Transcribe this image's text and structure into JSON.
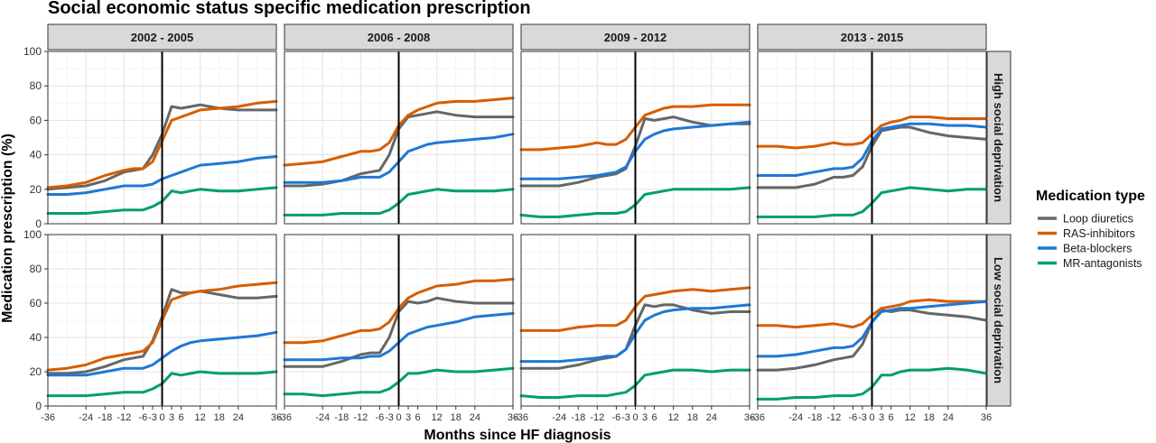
{
  "chart_data": {
    "type": "line",
    "title": "Social economic status specific medication prescription",
    "xlabel": "Months since HF diagnosis",
    "ylabel": "Medication prescription (%)",
    "ylim": [
      0,
      100
    ],
    "yticks": [
      "0",
      "20",
      "40",
      "60",
      "80",
      "100"
    ],
    "xlim": [
      -36,
      36
    ],
    "xticks": [
      -36,
      -24,
      -18,
      -12,
      -6,
      -3,
      0,
      3,
      6,
      12,
      18,
      24,
      36
    ],
    "xtick_labels": [
      "-36",
      "-24",
      "-18",
      "-12",
      "-6",
      "-3",
      "0",
      "3",
      "6",
      "12",
      "18",
      "24",
      "36"
    ],
    "diagnosis_line_x": 0,
    "grid": true,
    "legend": {
      "title": "Medication type",
      "placement": "right",
      "entries": [
        "Loop diuretics",
        "RAS-inhibitors",
        "Beta-blockers",
        "MR-antagonists"
      ]
    },
    "colors": {
      "Loop diuretics": "#666666",
      "RAS-inhibitors": "#d55e00",
      "Beta-blockers": "#1f78d4",
      "MR-antagonists": "#009e73"
    },
    "col_labels": [
      "2002 - 2005",
      "2006 - 2008",
      "2009 - 2012",
      "2013 - 2015"
    ],
    "row_labels": [
      "High social deprivation",
      "Low social deprivation"
    ],
    "x": [
      -36,
      -30,
      -24,
      -18,
      -12,
      -9,
      -6,
      -3,
      0,
      3,
      6,
      9,
      12,
      18,
      24,
      30,
      36
    ],
    "panels": [
      {
        "row": "High social deprivation",
        "col": "2002 - 2005",
        "series": [
          {
            "name": "Loop diuretics",
            "values": [
              20,
              21,
              22,
              25,
              30,
              31,
              32,
              40,
              52,
              68,
              67,
              68,
              69,
              67,
              66,
              66,
              66
            ]
          },
          {
            "name": "RAS-inhibitors",
            "values": [
              21,
              22,
              24,
              28,
              31,
              32,
              32,
              36,
              48,
              60,
              62,
              64,
              66,
              67,
              68,
              70,
              71
            ]
          },
          {
            "name": "Beta-blockers",
            "values": [
              17,
              17,
              18,
              20,
              22,
              22,
              22,
              23,
              26,
              28,
              30,
              32,
              34,
              35,
              36,
              38,
              39
            ]
          },
          {
            "name": "MR-antagonists",
            "values": [
              6,
              6,
              6,
              7,
              8,
              8,
              8,
              10,
              13,
              19,
              18,
              19,
              20,
              19,
              19,
              20,
              21
            ]
          }
        ]
      },
      {
        "row": "High social deprivation",
        "col": "2006 - 2008",
        "series": [
          {
            "name": "Loop diuretics",
            "values": [
              22,
              22,
              23,
              25,
              29,
              30,
              31,
              40,
              55,
              62,
              63,
              64,
              65,
              63,
              62,
              62,
              62
            ]
          },
          {
            "name": "RAS-inhibitors",
            "values": [
              34,
              35,
              36,
              39,
              42,
              42,
              43,
              47,
              57,
              63,
              66,
              68,
              70,
              71,
              71,
              72,
              73
            ]
          },
          {
            "name": "Beta-blockers",
            "values": [
              24,
              24,
              24,
              25,
              27,
              27,
              27,
              30,
              36,
              42,
              44,
              46,
              47,
              48,
              49,
              50,
              52
            ]
          },
          {
            "name": "MR-antagonists",
            "values": [
              5,
              5,
              5,
              6,
              6,
              6,
              6,
              8,
              12,
              17,
              18,
              19,
              20,
              19,
              19,
              19,
              20
            ]
          }
        ]
      },
      {
        "row": "High social deprivation",
        "col": "2009 - 2012",
        "series": [
          {
            "name": "Loop diuretics",
            "values": [
              22,
              22,
              22,
              24,
              27,
              28,
              29,
              32,
              45,
              61,
              60,
              61,
              62,
              59,
              57,
              58,
              58
            ]
          },
          {
            "name": "RAS-inhibitors",
            "values": [
              43,
              43,
              44,
              45,
              47,
              46,
              46,
              49,
              56,
              63,
              65,
              67,
              68,
              68,
              69,
              69,
              69
            ]
          },
          {
            "name": "Beta-blockers",
            "values": [
              26,
              26,
              26,
              27,
              28,
              29,
              30,
              33,
              42,
              49,
              52,
              54,
              55,
              56,
              57,
              58,
              59
            ]
          },
          {
            "name": "MR-antagonists",
            "values": [
              5,
              4,
              4,
              5,
              6,
              6,
              6,
              7,
              11,
              17,
              18,
              19,
              20,
              20,
              20,
              20,
              21
            ]
          }
        ]
      },
      {
        "row": "High social deprivation",
        "col": "2013 - 2015",
        "series": [
          {
            "name": "Loop diuretics",
            "values": [
              21,
              21,
              21,
              23,
              27,
              27,
              28,
              33,
              45,
              54,
              55,
              56,
              56,
              53,
              51,
              50,
              49
            ]
          },
          {
            "name": "RAS-inhibitors",
            "values": [
              45,
              45,
              44,
              45,
              47,
              46,
              46,
              47,
              52,
              57,
              59,
              60,
              62,
              62,
              61,
              61,
              61
            ]
          },
          {
            "name": "Beta-blockers",
            "values": [
              28,
              28,
              28,
              30,
              32,
              32,
              33,
              38,
              48,
              55,
              56,
              57,
              58,
              58,
              57,
              57,
              56
            ]
          },
          {
            "name": "MR-antagonists",
            "values": [
              4,
              4,
              4,
              4,
              5,
              5,
              5,
              7,
              12,
              18,
              19,
              20,
              21,
              20,
              19,
              20,
              20
            ]
          }
        ]
      },
      {
        "row": "Low social deprivation",
        "col": "2002 - 2005",
        "series": [
          {
            "name": "Loop diuretics",
            "values": [
              19,
              19,
              20,
              23,
              27,
              28,
              29,
              38,
              52,
              68,
              66,
              66,
              67,
              65,
              63,
              63,
              64
            ]
          },
          {
            "name": "RAS-inhibitors",
            "values": [
              21,
              22,
              24,
              28,
              30,
              31,
              32,
              37,
              50,
              62,
              64,
              66,
              67,
              68,
              70,
              71,
              72
            ]
          },
          {
            "name": "Beta-blockers",
            "values": [
              18,
              18,
              18,
              20,
              22,
              22,
              22,
              24,
              28,
              32,
              35,
              37,
              38,
              39,
              40,
              41,
              43
            ]
          },
          {
            "name": "MR-antagonists",
            "values": [
              6,
              6,
              6,
              7,
              8,
              8,
              8,
              10,
              13,
              19,
              18,
              19,
              20,
              19,
              19,
              19,
              20
            ]
          }
        ]
      },
      {
        "row": "Low social deprivation",
        "col": "2006 - 2008",
        "series": [
          {
            "name": "Loop diuretics",
            "values": [
              23,
              23,
              23,
              26,
              30,
              31,
              31,
              40,
              55,
              61,
              60,
              61,
              63,
              61,
              60,
              60,
              60
            ]
          },
          {
            "name": "RAS-inhibitors",
            "values": [
              37,
              37,
              38,
              41,
              44,
              44,
              45,
              49,
              57,
              63,
              66,
              68,
              70,
              71,
              73,
              73,
              74
            ]
          },
          {
            "name": "Beta-blockers",
            "values": [
              27,
              27,
              27,
              28,
              28,
              29,
              29,
              32,
              37,
              42,
              44,
              46,
              47,
              49,
              52,
              53,
              54
            ]
          },
          {
            "name": "MR-antagonists",
            "values": [
              7,
              7,
              6,
              7,
              8,
              8,
              8,
              10,
              14,
              19,
              19,
              20,
              21,
              20,
              20,
              21,
              22
            ]
          }
        ]
      },
      {
        "row": "Low social deprivation",
        "col": "2009 - 2012",
        "series": [
          {
            "name": "Loop diuretics",
            "values": [
              22,
              22,
              22,
              24,
              27,
              28,
              29,
              33,
              47,
              59,
              58,
              59,
              59,
              56,
              54,
              55,
              55
            ]
          },
          {
            "name": "RAS-inhibitors",
            "values": [
              44,
              44,
              44,
              46,
              47,
              47,
              47,
              50,
              58,
              64,
              65,
              66,
              67,
              68,
              67,
              68,
              69
            ]
          },
          {
            "name": "Beta-blockers",
            "values": [
              26,
              26,
              26,
              27,
              28,
              29,
              29,
              33,
              42,
              50,
              53,
              55,
              56,
              57,
              57,
              58,
              59
            ]
          },
          {
            "name": "MR-antagonists",
            "values": [
              6,
              5,
              5,
              6,
              6,
              6,
              7,
              8,
              12,
              18,
              19,
              20,
              21,
              21,
              20,
              21,
              21
            ]
          }
        ]
      },
      {
        "row": "Low social deprivation",
        "col": "2013 - 2015",
        "series": [
          {
            "name": "Loop diuretics",
            "values": [
              21,
              21,
              22,
              24,
              27,
              28,
              29,
              36,
              49,
              56,
              55,
              56,
              56,
              54,
              53,
              52,
              50
            ]
          },
          {
            "name": "RAS-inhibitors",
            "values": [
              47,
              47,
              46,
              47,
              48,
              47,
              46,
              48,
              53,
              57,
              58,
              59,
              61,
              62,
              61,
              61,
              61
            ]
          },
          {
            "name": "Beta-blockers",
            "values": [
              29,
              29,
              30,
              32,
              34,
              34,
              35,
              40,
              49,
              55,
              56,
              57,
              57,
              58,
              59,
              60,
              61
            ]
          },
          {
            "name": "MR-antagonists",
            "values": [
              4,
              4,
              5,
              5,
              6,
              6,
              6,
              7,
              11,
              18,
              18,
              20,
              21,
              21,
              22,
              21,
              19
            ]
          }
        ]
      }
    ]
  }
}
